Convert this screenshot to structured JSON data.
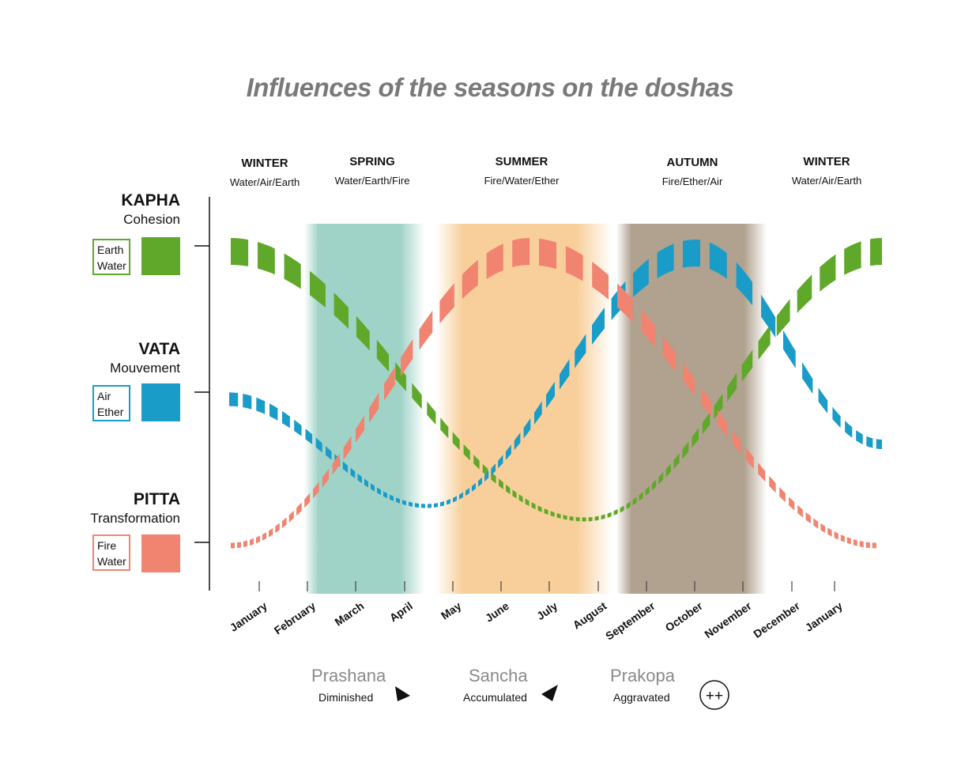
{
  "title": "Influences of the seasons on the doshas",
  "seasons": [
    {
      "name": "WINTER",
      "elements": "Water/Air/Earth"
    },
    {
      "name": "SPRING",
      "elements": "Water/Earth/Fire"
    },
    {
      "name": "SUMMER",
      "elements": "Fire/Water/Ether"
    },
    {
      "name": "AUTUMN",
      "elements": "Fire/Ether/Air"
    },
    {
      "name": "WINTER",
      "elements": "Water/Air/Earth"
    }
  ],
  "doshas": [
    {
      "name": "KAPHA",
      "quality": "Cohesion",
      "element1": "Earth",
      "element2": "Water",
      "color": "#5fa82a"
    },
    {
      "name": "VATA",
      "quality": "Mouvement",
      "element1": "Air",
      "element2": "Ether",
      "color": "#1a9cc9"
    },
    {
      "name": "PITTA",
      "quality": "Transformation",
      "element1": "Fire",
      "element2": "Water",
      "color": "#f08470"
    }
  ],
  "months": [
    "January",
    "February",
    "March",
    "April",
    "May",
    "June",
    "July",
    "August",
    "September",
    "October",
    "November",
    "December",
    "January"
  ],
  "season_bands": [
    {
      "name": "SPRING",
      "color": "#8ecbbd"
    },
    {
      "name": "SUMMER",
      "color": "#f6bf78"
    },
    {
      "name": "AUTUMN",
      "color": "#a2917a"
    }
  ],
  "phases": [
    {
      "name": "Prashana",
      "description": "Diminished",
      "icon": "arrow-down-right-icon"
    },
    {
      "name": "Sancha",
      "description": "Accumulated",
      "icon": "arrow-up-right-icon"
    },
    {
      "name": "Prakopa",
      "description": "Aggravated",
      "symbol": "++"
    }
  ]
}
